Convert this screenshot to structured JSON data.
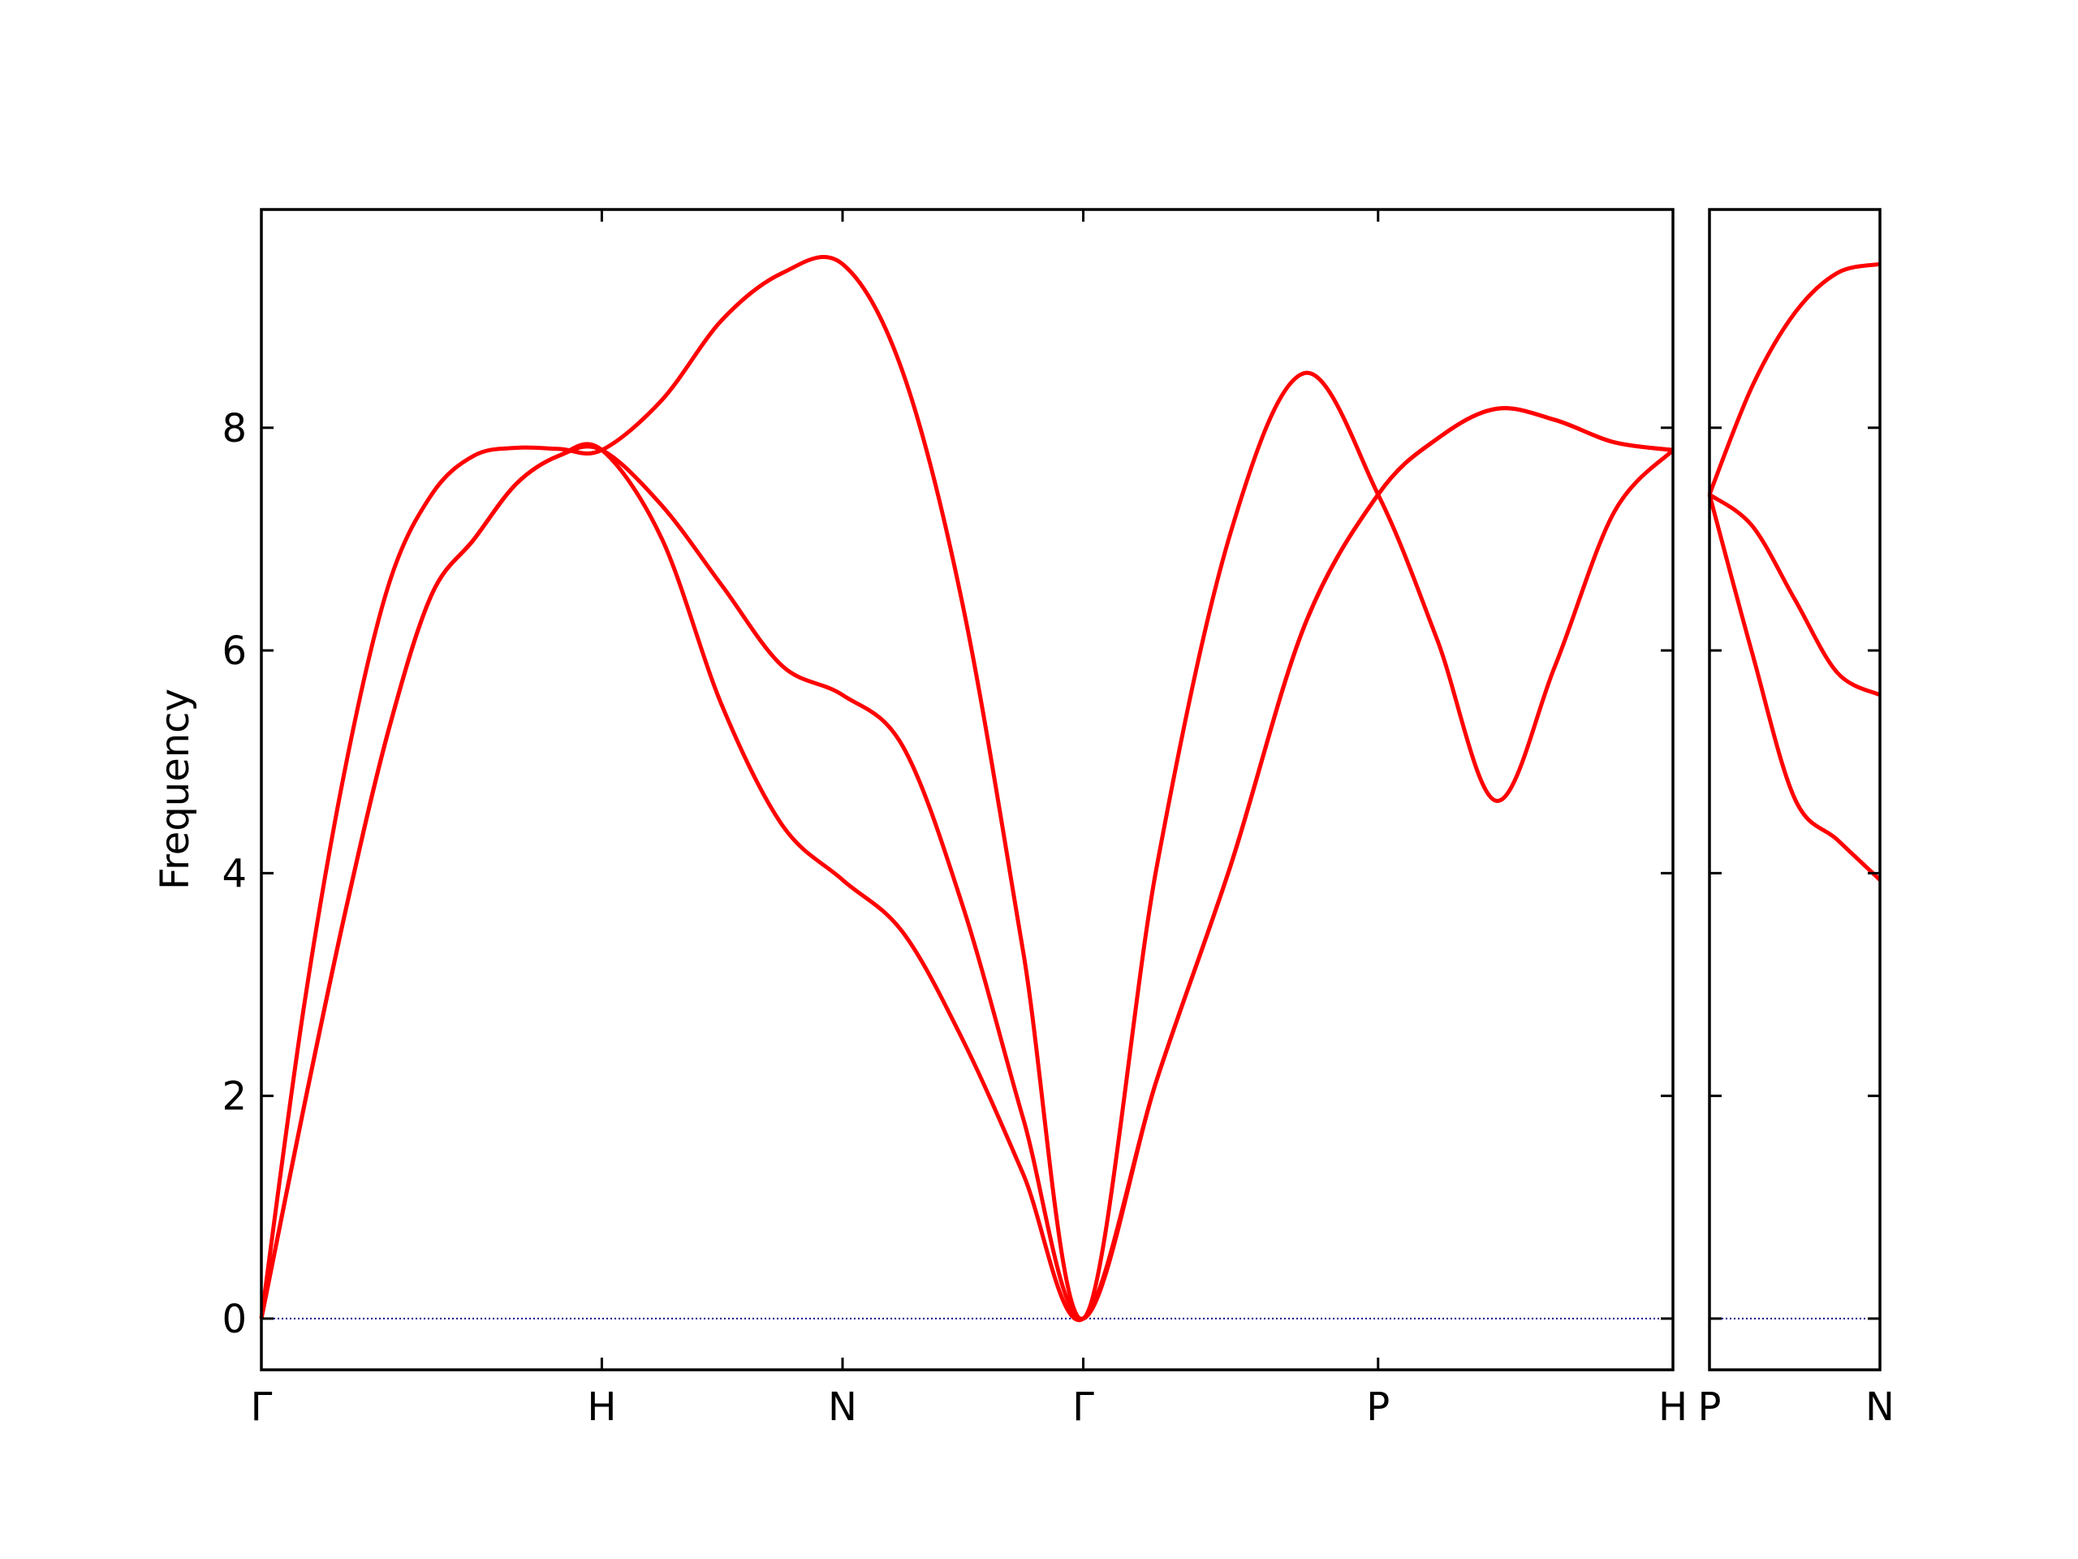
{
  "chart_data": [
    {
      "type": "line",
      "y_label": "Frequency",
      "x": [
        0,
        0.125,
        0.25,
        0.375,
        0.5,
        0.625,
        0.75,
        0.875,
        1,
        1.1768,
        1.3536,
        1.5303,
        1.7071,
        1.8839,
        2.0607,
        2.2374,
        2.4142,
        2.6307,
        2.8472,
        3.0637,
        3.2802,
        3.4534,
        3.6266,
        3.7998,
        3.9731,
        4.1463
      ],
      "series": [
        {
          "color": "#ff0000",
          "values": [
            0,
            2.8,
            5.0,
            6.6,
            7.4,
            7.75,
            7.82,
            7.81,
            7.8,
            8.25,
            8.97,
            9.39,
            9.47,
            8.5,
            6.4,
            3.3,
            0,
            4.07,
            7.06,
            8.49,
            7.4,
            6.1,
            4.65,
            5.86,
            7.24,
            7.8
          ]
        },
        {
          "color": "#ff0000",
          "values": [
            0,
            1.9,
            3.7,
            5.3,
            6.5,
            7.0,
            7.5,
            7.75,
            7.8,
            7.3,
            6.58,
            5.86,
            5.6,
            5.14,
            3.7,
            1.8,
            0,
            2.15,
            4.07,
            6.22,
            7.4,
            7.9,
            8.17,
            8.07,
            7.87,
            7.8
          ]
        },
        {
          "color": "#ff0000",
          "values": [
            0,
            1.9,
            3.7,
            5.3,
            6.5,
            7.0,
            7.5,
            7.75,
            7.8,
            7.0,
            5.5,
            4.43,
            3.94,
            3.47,
            2.5,
            1.3,
            0,
            2.15,
            4.07,
            6.22,
            7.4,
            7.9,
            8.17,
            8.07,
            7.87,
            7.8
          ]
        }
      ],
      "xlim": [
        0,
        4.1463
      ],
      "ylim": [
        -0.46,
        9.96
      ],
      "xticks": [
        {
          "value": 0,
          "label": "Γ"
        },
        {
          "value": 1,
          "label": "H"
        },
        {
          "value": 1.7071,
          "label": "N"
        },
        {
          "value": 2.4142,
          "label": "Γ"
        },
        {
          "value": 3.2802,
          "label": "P"
        },
        {
          "value": 4.1463,
          "label": "H"
        }
      ],
      "yticks": [
        0,
        2,
        4,
        6,
        8
      ],
      "ytick_labels": true,
      "zero_line": {
        "value": 0,
        "color": "#00008b"
      }
    },
    {
      "type": "line",
      "x": [
        4.1463,
        4.2713,
        4.3963,
        4.5213,
        4.6463
      ],
      "series": [
        {
          "color": "#ff0000",
          "values": [
            7.4,
            8.37,
            9.03,
            9.39,
            9.47
          ]
        },
        {
          "color": "#ff0000",
          "values": [
            7.4,
            7.12,
            6.46,
            5.8,
            5.6
          ]
        },
        {
          "color": "#ff0000",
          "values": [
            7.4,
            5.98,
            4.67,
            4.3,
            3.94
          ]
        }
      ],
      "xlim": [
        4.1463,
        4.6463
      ],
      "ylim": [
        -0.46,
        9.96
      ],
      "xticks": [
        {
          "value": 4.1463,
          "label": "P"
        },
        {
          "value": 4.6463,
          "label": "N"
        }
      ],
      "yticks": [
        0,
        2,
        4,
        6,
        8
      ],
      "ytick_labels": false,
      "zero_line": {
        "value": 0,
        "color": "#00008b"
      }
    }
  ]
}
